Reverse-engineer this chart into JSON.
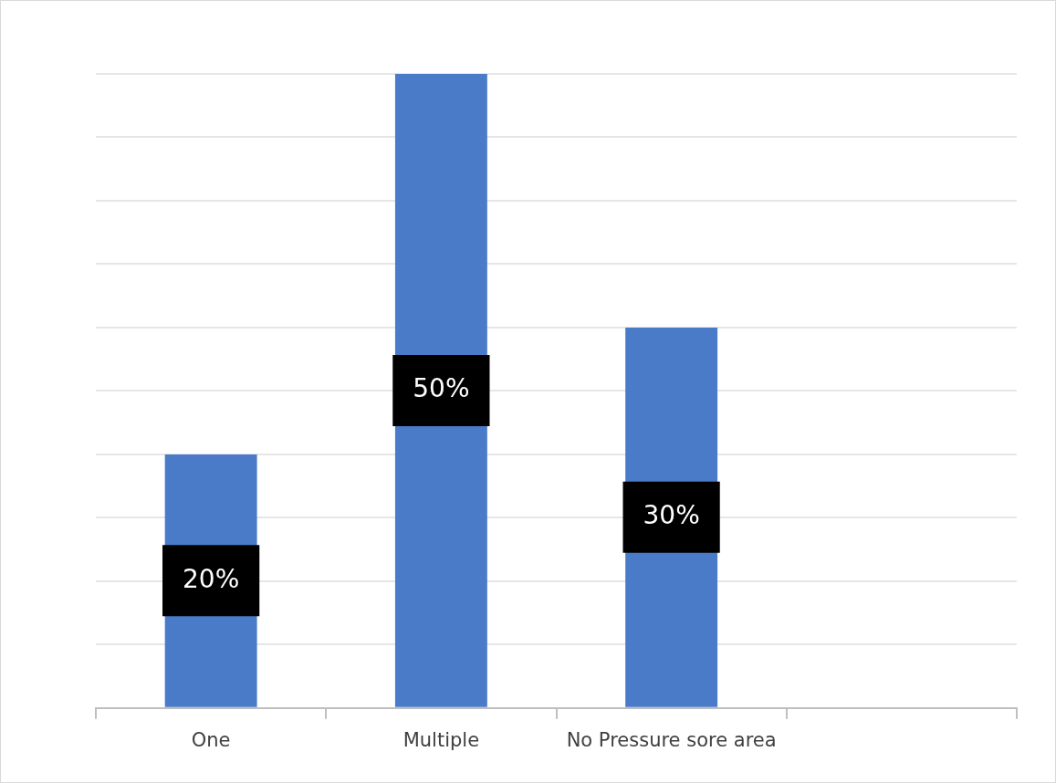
{
  "chart_data": {
    "type": "bar",
    "categories": [
      "One",
      "Multiple",
      "No Pressure sore area",
      null
    ],
    "values": [
      20,
      50,
      30,
      null
    ],
    "value_labels": [
      "20%",
      "50%",
      "30%",
      null
    ],
    "color": "#4a7bc8",
    "ylim": [
      0,
      50
    ],
    "yticks": [
      {
        "value": 0,
        "label": null
      },
      {
        "value": 5,
        "label": null
      },
      {
        "value": 10,
        "label": null
      },
      {
        "value": 15,
        "label": null
      },
      {
        "value": 20,
        "label": null
      },
      {
        "value": 25,
        "label": null
      },
      {
        "value": 30,
        "label": null
      },
      {
        "value": 35,
        "label": null
      },
      {
        "value": 40,
        "label": null
      },
      {
        "value": 45,
        "label": null
      },
      {
        "value": 50,
        "label": null
      }
    ],
    "grid": "y",
    "legend": false,
    "tick_labels": "x"
  }
}
